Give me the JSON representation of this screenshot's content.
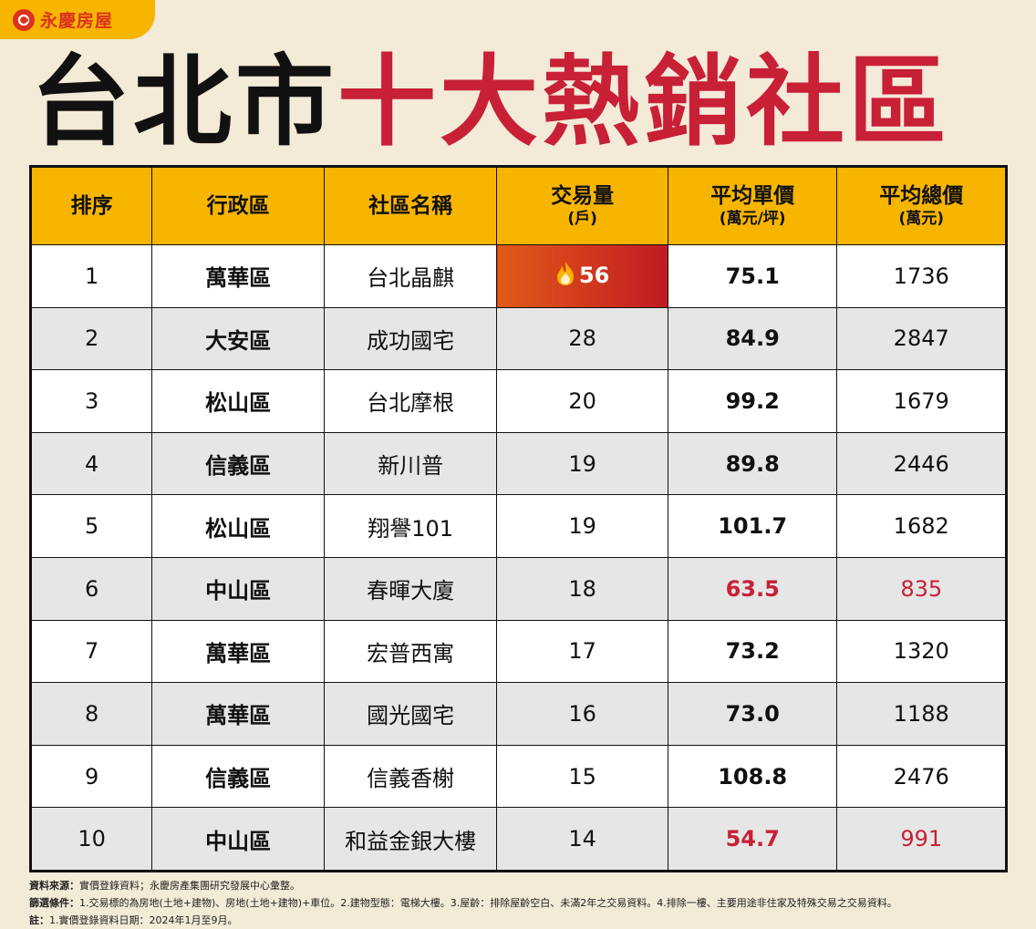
{
  "brand": {
    "name": "永慶房屋",
    "color": "#d9321f"
  },
  "title": {
    "part1": "台北市",
    "part2": "十大熱銷社區"
  },
  "table": {
    "headers": [
      {
        "main": "排序",
        "sub": ""
      },
      {
        "main": "行政區",
        "sub": ""
      },
      {
        "main": "社區名稱",
        "sub": ""
      },
      {
        "main": "交易量",
        "sub": "(戶)"
      },
      {
        "main": "平均單價",
        "sub": "(萬元/坪)"
      },
      {
        "main": "平均總價",
        "sub": "(萬元)"
      }
    ],
    "rows": [
      {
        "rank": "1",
        "district": "萬華區",
        "community": "台北晶麒",
        "volume": "56",
        "unit_price": "75.1",
        "total_price": "1736",
        "hot": true,
        "red": false
      },
      {
        "rank": "2",
        "district": "大安區",
        "community": "成功國宅",
        "volume": "28",
        "unit_price": "84.9",
        "total_price": "2847",
        "hot": false,
        "red": false
      },
      {
        "rank": "3",
        "district": "松山區",
        "community": "台北摩根",
        "volume": "20",
        "unit_price": "99.2",
        "total_price": "1679",
        "hot": false,
        "red": false
      },
      {
        "rank": "4",
        "district": "信義區",
        "community": "新川普",
        "volume": "19",
        "unit_price": "89.8",
        "total_price": "2446",
        "hot": false,
        "red": false
      },
      {
        "rank": "5",
        "district": "松山區",
        "community": "翔譽101",
        "volume": "19",
        "unit_price": "101.7",
        "total_price": "1682",
        "hot": false,
        "red": false
      },
      {
        "rank": "6",
        "district": "中山區",
        "community": "春暉大廈",
        "volume": "18",
        "unit_price": "63.5",
        "total_price": "835",
        "hot": false,
        "red": true
      },
      {
        "rank": "7",
        "district": "萬華區",
        "community": "宏普西寓",
        "volume": "17",
        "unit_price": "73.2",
        "total_price": "1320",
        "hot": false,
        "red": false
      },
      {
        "rank": "8",
        "district": "萬華區",
        "community": "國光國宅",
        "volume": "16",
        "unit_price": "73.0",
        "total_price": "1188",
        "hot": false,
        "red": false
      },
      {
        "rank": "9",
        "district": "信義區",
        "community": "信義香榭",
        "volume": "15",
        "unit_price": "108.8",
        "total_price": "2476",
        "hot": false,
        "red": false
      },
      {
        "rank": "10",
        "district": "中山區",
        "community": "和益金銀大樓",
        "volume": "14",
        "unit_price": "54.7",
        "total_price": "991",
        "hot": false,
        "red": true
      }
    ]
  },
  "footer": {
    "source_label": "資料來源：",
    "source_text": "實價登錄資料；永慶房產集團研究發展中心彙整。",
    "criteria_label": "篩選條件：",
    "criteria_text": "1.交易標的為房地(土地+建物)、房地(土地+建物)+車位。2.建物型態：電梯大樓。3.屋齡：排除屋齡空白、未滿2年之交易資料。4.排除一樓、主要用途非住家及特殊交易之交易資料。",
    "note_label": "註：",
    "note_text": "1.實價登錄資料日期：2024年1月至9月。"
  },
  "colors": {
    "header_bg": "#f7b500",
    "accent_red": "#c82037",
    "page_bg": "#f3ead7"
  },
  "icons": {
    "hot": "flame-icon",
    "logo": "brand-logo-icon"
  }
}
